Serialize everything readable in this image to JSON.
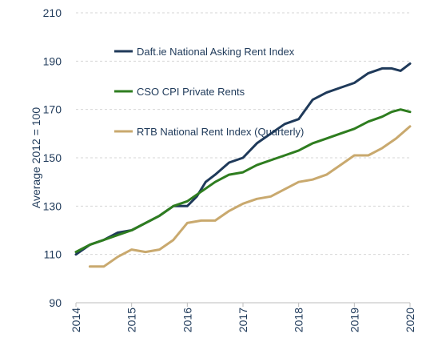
{
  "chart_data": {
    "type": "line",
    "title": "",
    "ylabel": "Average 2012 = 100",
    "xlabel": "",
    "ylim": [
      90,
      210
    ],
    "yticks": [
      90,
      110,
      130,
      150,
      170,
      190,
      210
    ],
    "xlim": [
      2014,
      2020
    ],
    "xticks": [
      2014,
      2015,
      2016,
      2017,
      2018,
      2019,
      2020
    ],
    "grid": "horizontal dashed",
    "legend_placement": "top-left, inside plot",
    "series": [
      {
        "name": "Daft.ie National Asking Rent Index",
        "color": "#1f3a5a",
        "x": [
          2014.0,
          2014.25,
          2014.5,
          2014.75,
          2015.0,
          2015.25,
          2015.5,
          2015.75,
          2016.0,
          2016.17,
          2016.33,
          2016.5,
          2016.75,
          2017.0,
          2017.25,
          2017.5,
          2017.75,
          2018.0,
          2018.25,
          2018.5,
          2018.75,
          2019.0,
          2019.25,
          2019.5,
          2019.67,
          2019.83,
          2020.0
        ],
        "y": [
          110,
          114,
          116,
          119,
          120,
          123,
          126,
          130,
          130,
          134,
          140,
          143,
          148,
          150,
          156,
          160,
          164,
          166,
          174,
          177,
          179,
          181,
          185,
          187,
          187,
          186,
          189
        ]
      },
      {
        "name": "CSO CPI Private Rents",
        "color": "#2e7d1f",
        "x": [
          2014.0,
          2014.25,
          2014.5,
          2014.75,
          2015.0,
          2015.25,
          2015.5,
          2015.75,
          2016.0,
          2016.25,
          2016.5,
          2016.75,
          2017.0,
          2017.25,
          2017.5,
          2017.75,
          2018.0,
          2018.25,
          2018.5,
          2018.75,
          2019.0,
          2019.25,
          2019.5,
          2019.67,
          2019.83,
          2020.0
        ],
        "y": [
          111,
          114,
          116,
          118,
          120,
          123,
          126,
          130,
          132,
          136,
          140,
          143,
          144,
          147,
          149,
          151,
          153,
          156,
          158,
          160,
          162,
          165,
          167,
          169,
          170,
          169
        ]
      },
      {
        "name": "RTB National Rent Index (Quarterly)",
        "color": "#c9a96e",
        "x": [
          2014.25,
          2014.5,
          2014.75,
          2015.0,
          2015.25,
          2015.5,
          2015.75,
          2016.0,
          2016.25,
          2016.5,
          2016.75,
          2017.0,
          2017.25,
          2017.5,
          2017.75,
          2018.0,
          2018.25,
          2018.5,
          2018.75,
          2019.0,
          2019.25,
          2019.5,
          2019.75,
          2020.0
        ],
        "y": [
          105,
          105,
          109,
          112,
          111,
          112,
          116,
          123,
          124,
          124,
          128,
          131,
          133,
          134,
          137,
          140,
          141,
          143,
          147,
          151,
          151,
          154,
          158,
          163
        ]
      }
    ]
  }
}
